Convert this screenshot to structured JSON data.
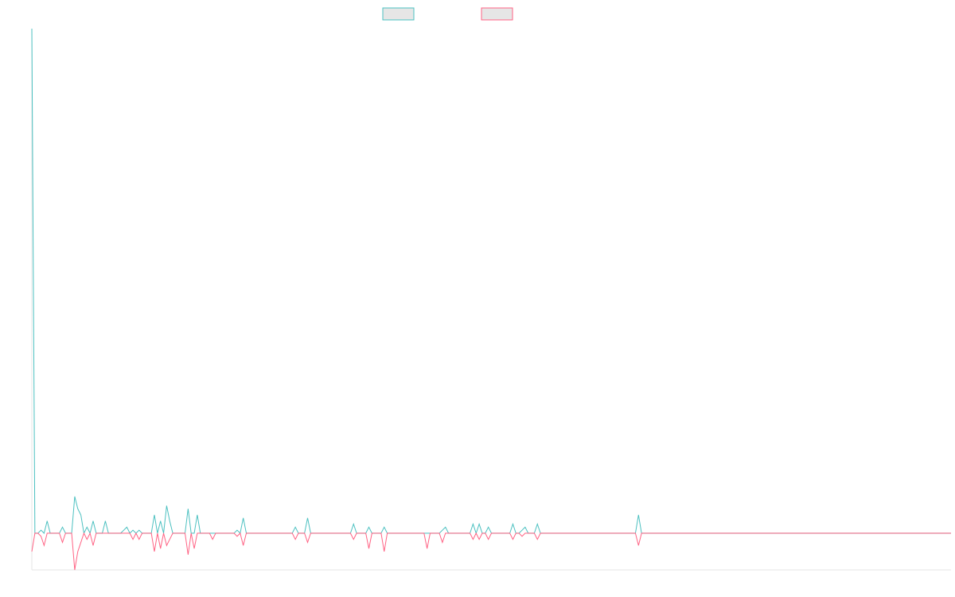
{
  "chart_data": {
    "type": "line",
    "title": "",
    "xlabel": "",
    "ylabel": "",
    "grid": false,
    "legend": "top-center",
    "ylim": [
      -12,
      165
    ],
    "x_count": 301,
    "series": [
      {
        "label": "",
        "color": "#4bc0c0",
        "fill": "#e6e6e6",
        "points": [
          [
            0,
            165
          ],
          [
            1,
            0
          ],
          [
            2,
            0
          ],
          [
            3,
            1
          ],
          [
            4,
            0
          ],
          [
            5,
            4
          ],
          [
            6,
            0
          ],
          [
            10,
            2
          ],
          [
            11,
            0
          ],
          [
            14,
            12
          ],
          [
            15,
            8
          ],
          [
            16,
            6
          ],
          [
            17,
            0
          ],
          [
            18,
            2
          ],
          [
            19,
            0
          ],
          [
            20,
            4
          ],
          [
            21,
            0
          ],
          [
            24,
            4
          ],
          [
            25,
            0
          ],
          [
            30,
            1
          ],
          [
            31,
            2
          ],
          [
            32,
            0
          ],
          [
            33,
            1
          ],
          [
            34,
            0
          ],
          [
            35,
            1
          ],
          [
            36,
            0
          ],
          [
            40,
            6
          ],
          [
            41,
            0
          ],
          [
            42,
            4
          ],
          [
            43,
            0
          ],
          [
            44,
            9
          ],
          [
            45,
            4
          ],
          [
            46,
            0
          ],
          [
            51,
            8
          ],
          [
            52,
            0
          ],
          [
            53,
            0
          ],
          [
            54,
            6
          ],
          [
            55,
            0
          ],
          [
            67,
            1
          ],
          [
            68,
            0
          ],
          [
            69,
            5
          ],
          [
            70,
            0
          ],
          [
            86,
            2
          ],
          [
            87,
            0
          ],
          [
            90,
            5
          ],
          [
            91,
            0
          ],
          [
            105,
            3
          ],
          [
            106,
            0
          ],
          [
            110,
            2
          ],
          [
            111,
            0
          ],
          [
            115,
            2
          ],
          [
            116,
            0
          ],
          [
            134,
            1
          ],
          [
            135,
            2
          ],
          [
            136,
            0
          ],
          [
            144,
            3
          ],
          [
            145,
            0
          ],
          [
            146,
            3
          ],
          [
            147,
            0
          ],
          [
            149,
            2
          ],
          [
            150,
            0
          ],
          [
            157,
            3
          ],
          [
            158,
            0
          ],
          [
            160,
            1
          ],
          [
            161,
            2
          ],
          [
            162,
            0
          ],
          [
            165,
            3
          ],
          [
            166,
            0
          ],
          [
            198,
            6
          ],
          [
            199,
            0
          ],
          [
            300,
            0
          ]
        ]
      },
      {
        "label": "",
        "color": "#ff6384",
        "fill": "#e6e6e6",
        "points": [
          [
            0,
            -6
          ],
          [
            1,
            0
          ],
          [
            2,
            0
          ],
          [
            3,
            -1
          ],
          [
            4,
            -4
          ],
          [
            5,
            0
          ],
          [
            10,
            -3
          ],
          [
            11,
            0
          ],
          [
            14,
            -12
          ],
          [
            15,
            -6
          ],
          [
            16,
            -3
          ],
          [
            17,
            0
          ],
          [
            18,
            -2
          ],
          [
            19,
            0
          ],
          [
            20,
            -4
          ],
          [
            21,
            0
          ],
          [
            33,
            -2
          ],
          [
            34,
            0
          ],
          [
            35,
            -2
          ],
          [
            36,
            0
          ],
          [
            40,
            -6
          ],
          [
            41,
            0
          ],
          [
            42,
            -5
          ],
          [
            43,
            0
          ],
          [
            44,
            -4
          ],
          [
            45,
            -2
          ],
          [
            46,
            0
          ],
          [
            51,
            -7
          ],
          [
            52,
            0
          ],
          [
            53,
            -5
          ],
          [
            54,
            0
          ],
          [
            59,
            -2
          ],
          [
            60,
            0
          ],
          [
            67,
            -1
          ],
          [
            68,
            0
          ],
          [
            69,
            -4
          ],
          [
            70,
            0
          ],
          [
            86,
            -2
          ],
          [
            87,
            0
          ],
          [
            90,
            -3
          ],
          [
            91,
            0
          ],
          [
            105,
            -2
          ],
          [
            106,
            0
          ],
          [
            110,
            -5
          ],
          [
            111,
            0
          ],
          [
            115,
            -6
          ],
          [
            116,
            0
          ],
          [
            129,
            -5
          ],
          [
            130,
            0
          ],
          [
            134,
            -3
          ],
          [
            135,
            0
          ],
          [
            144,
            -2
          ],
          [
            145,
            0
          ],
          [
            146,
            -2
          ],
          [
            147,
            0
          ],
          [
            149,
            -2
          ],
          [
            150,
            0
          ],
          [
            157,
            -2
          ],
          [
            158,
            0
          ],
          [
            160,
            -1
          ],
          [
            161,
            0
          ],
          [
            165,
            -2
          ],
          [
            166,
            0
          ],
          [
            198,
            -4
          ],
          [
            199,
            0
          ],
          [
            300,
            0
          ]
        ]
      }
    ]
  }
}
